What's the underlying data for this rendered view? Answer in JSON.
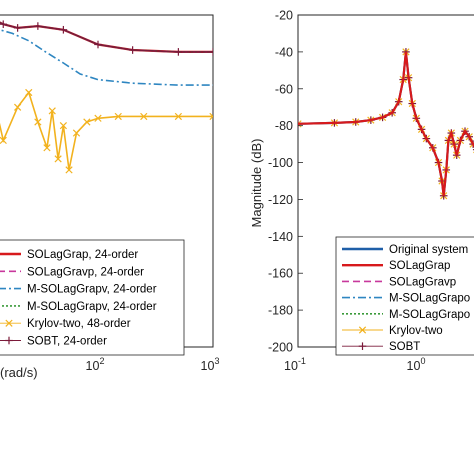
{
  "chart_data": [
    {
      "type": "line",
      "panel": "left",
      "xlabel": "(rad/s)",
      "xscale": "log",
      "xlim": [
        0.3,
        1000
      ],
      "x_ticks": [
        {
          "value": 100,
          "base": "10",
          "exp": "2"
        },
        {
          "value": 1000,
          "base": "10",
          "exp": "3"
        }
      ],
      "y_ticks": [],
      "grid": false,
      "legend_position": "bottom-left",
      "series": [
        {
          "name": "SOLagGrap, 24-order",
          "color": "#d7191c",
          "style": "solid",
          "x": [
            0.3,
            1,
            3,
            6,
            8,
            10,
            12,
            15,
            20,
            30,
            50,
            100,
            200,
            500,
            1000
          ],
          "y": [
            -38,
            -36,
            -30,
            -24,
            -28,
            -35,
            -22,
            -25,
            -27,
            -26,
            -28,
            -36,
            -39,
            -40,
            -40
          ]
        },
        {
          "name": "SOLagGravp, 24-order",
          "color": "#c8389c",
          "style": "dashed",
          "x": [
            0.3,
            1,
            3,
            6,
            8,
            10,
            12,
            15,
            20,
            30,
            50,
            100,
            200,
            500,
            1000
          ],
          "y": [
            -38,
            -36,
            -30,
            -24,
            -28,
            -35,
            -22,
            -25,
            -27,
            -26,
            -28,
            -36,
            -39,
            -40,
            -40
          ]
        },
        {
          "name": "M-SOLagGrapv, 24-order",
          "color": "#2e86c1",
          "style": "dashdot",
          "x": [
            0.3,
            1,
            3,
            6,
            10,
            14,
            18,
            25,
            35,
            50,
            70,
            100,
            200,
            500,
            1000
          ],
          "y": [
            -40,
            -38,
            -34,
            -30,
            -36,
            -28,
            -30,
            -34,
            -40,
            -46,
            -52,
            -55,
            -57,
            -58,
            -58
          ]
        },
        {
          "name": "M-SOLagGrapv, 24-order",
          "color": "#3a9a3a",
          "style": "dotted",
          "x": [
            0.3,
            1,
            3,
            6,
            8,
            10,
            12,
            15,
            20,
            30,
            50,
            100,
            200,
            500,
            1000
          ],
          "y": [
            -38,
            -36,
            -30,
            -24,
            -28,
            -35,
            -22,
            -25,
            -27,
            -26,
            -28,
            -36,
            -39,
            -40,
            -40
          ]
        },
        {
          "name": "Krylov-two, 48-order",
          "color": "#f2b21e",
          "style": "marker-x",
          "x": [
            0.3,
            1,
            3,
            5,
            7,
            9,
            12,
            15,
            20,
            25,
            30,
            36,
            40,
            45,
            50,
            56,
            65,
            80,
            100,
            150,
            250,
            500,
            1000
          ],
          "y": [
            -45,
            -48,
            -60,
            -72,
            -65,
            -50,
            -62,
            -88,
            -70,
            -62,
            -78,
            -92,
            -72,
            -98,
            -80,
            -104,
            -84,
            -78,
            -76,
            -75,
            -75,
            -75,
            -75
          ]
        },
        {
          "name": "SOBT, 24-order",
          "color": "#7b1a3a",
          "style": "marker-plus",
          "x": [
            0.3,
            1,
            3,
            6,
            8,
            10,
            12,
            15,
            20,
            30,
            50,
            100,
            200,
            500,
            1000
          ],
          "y": [
            -38,
            -36,
            -30,
            -24,
            -28,
            -35,
            -22,
            -25,
            -27,
            -26,
            -28,
            -36,
            -39,
            -40,
            -40
          ]
        }
      ]
    },
    {
      "type": "line",
      "panel": "right",
      "xlabel": "",
      "ylabel": "Magnitude (dB)",
      "xscale": "log",
      "xlim": [
        0.1,
        3
      ],
      "ylim": [
        -200,
        -20
      ],
      "x_ticks": [
        {
          "value": 0.1,
          "base": "10",
          "exp": "-1"
        },
        {
          "value": 1,
          "base": "10",
          "exp": "0"
        }
      ],
      "y_ticks": [
        -20,
        -40,
        -60,
        -80,
        -100,
        -120,
        -140,
        -160,
        -180,
        -200
      ],
      "grid": false,
      "legend_position": "bottom-right",
      "series": [
        {
          "name": "Original system",
          "color": "#1f5fa8",
          "style": "solid",
          "x": [
            0.1,
            0.2,
            0.3,
            0.4,
            0.5,
            0.6,
            0.68,
            0.74,
            0.78,
            0.82,
            0.88,
            0.95,
            1.05,
            1.15,
            1.3,
            1.45,
            1.55,
            1.6,
            1.68,
            1.75,
            1.85,
            1.95,
            2.05,
            2.2,
            2.4,
            2.6,
            2.8,
            3.0
          ],
          "y": [
            -79,
            -78.5,
            -78,
            -77,
            -75.5,
            -73,
            -67,
            -55,
            -40,
            -54,
            -68,
            -76,
            -82,
            -87,
            -92,
            -100,
            -110,
            -118,
            -104,
            -88,
            -84,
            -90,
            -96,
            -88,
            -83,
            -86,
            -90,
            -93
          ]
        },
        {
          "name": "SOLagGrap",
          "color": "#d7191c",
          "style": "solid",
          "x": [
            0.1,
            0.2,
            0.3,
            0.4,
            0.5,
            0.6,
            0.68,
            0.74,
            0.78,
            0.82,
            0.88,
            0.95,
            1.05,
            1.15,
            1.3,
            1.45,
            1.55,
            1.6,
            1.68,
            1.75,
            1.85,
            1.95,
            2.05,
            2.2,
            2.4,
            2.6,
            2.8,
            3.0
          ],
          "y": [
            -79,
            -78.5,
            -78,
            -77,
            -75.5,
            -73,
            -67,
            -55,
            -40,
            -54,
            -68,
            -76,
            -82,
            -87,
            -92,
            -100,
            -110,
            -118,
            -104,
            -88,
            -84,
            -90,
            -96,
            -88,
            -83,
            -86,
            -90,
            -93
          ]
        },
        {
          "name": "SOLagGravp",
          "color": "#c8389c",
          "style": "dashed",
          "x": [
            0.1,
            0.2,
            0.3,
            0.4,
            0.5,
            0.6,
            0.68,
            0.74,
            0.78,
            0.82,
            0.88,
            0.95,
            1.05,
            1.15,
            1.3,
            1.45,
            1.55,
            1.6,
            1.68,
            1.75,
            1.85,
            1.95,
            2.05,
            2.2,
            2.4,
            2.6,
            2.8,
            3.0
          ],
          "y": [
            -79,
            -78.5,
            -78,
            -77,
            -75.5,
            -73,
            -67,
            -55,
            -40,
            -54,
            -68,
            -76,
            -82,
            -87,
            -92,
            -100,
            -110,
            -118,
            -104,
            -88,
            -84,
            -90,
            -96,
            -88,
            -83,
            -86,
            -90,
            -93
          ]
        },
        {
          "name": "M-SOLagGrapo",
          "color": "#2e86c1",
          "style": "dashdot",
          "x": [
            0.1,
            0.2,
            0.3,
            0.4,
            0.5,
            0.6,
            0.68,
            0.74,
            0.78,
            0.82,
            0.88,
            0.95,
            1.05,
            1.15,
            1.3,
            1.45,
            1.55,
            1.6,
            1.68,
            1.75,
            1.85,
            1.95,
            2.05,
            2.2,
            2.4,
            2.6,
            2.8,
            3.0
          ],
          "y": [
            -79,
            -78.5,
            -78,
            -77,
            -75.5,
            -73,
            -67,
            -55,
            -40,
            -54,
            -68,
            -76,
            -82,
            -87,
            -92,
            -100,
            -110,
            -118,
            -104,
            -88,
            -84,
            -90,
            -96,
            -88,
            -83,
            -86,
            -90,
            -93
          ]
        },
        {
          "name": "M-SOLagGrapo",
          "color": "#3a9a3a",
          "style": "dotted",
          "x": [
            0.1,
            0.2,
            0.3,
            0.4,
            0.5,
            0.6,
            0.68,
            0.74,
            0.78,
            0.82,
            0.88,
            0.95,
            1.05,
            1.15,
            1.3,
            1.45,
            1.55,
            1.6,
            1.68,
            1.75,
            1.85,
            1.95,
            2.05,
            2.2,
            2.4,
            2.6,
            2.8,
            3.0
          ],
          "y": [
            -79,
            -78.5,
            -78,
            -77,
            -75.5,
            -73,
            -67,
            -55,
            -40,
            -54,
            -68,
            -76,
            -82,
            -87,
            -92,
            -100,
            -110,
            -118,
            -104,
            -88,
            -84,
            -90,
            -96,
            -88,
            -83,
            -86,
            -90,
            -93
          ]
        },
        {
          "name": "Krylov-two",
          "color": "#f2b21e",
          "style": "marker-x",
          "x": [
            0.1,
            0.2,
            0.3,
            0.4,
            0.5,
            0.6,
            0.68,
            0.74,
            0.78,
            0.82,
            0.88,
            0.95,
            1.05,
            1.15,
            1.3,
            1.45,
            1.55,
            1.6,
            1.68,
            1.75,
            1.85,
            1.95,
            2.05,
            2.2,
            2.4,
            2.6,
            2.8,
            3.0
          ],
          "y": [
            -79,
            -78.5,
            -78,
            -77,
            -75.5,
            -73,
            -67,
            -55,
            -40,
            -54,
            -68,
            -76,
            -82,
            -87,
            -92,
            -100,
            -110,
            -118,
            -104,
            -88,
            -84,
            -90,
            -96,
            -88,
            -83,
            -86,
            -90,
            -93
          ]
        },
        {
          "name": "SOBT",
          "color": "#7b1a3a",
          "style": "marker-plus",
          "x": [
            0.1,
            0.2,
            0.3,
            0.4,
            0.5,
            0.6,
            0.68,
            0.74,
            0.78,
            0.82,
            0.88,
            0.95,
            1.05,
            1.15,
            1.3,
            1.45,
            1.55,
            1.6,
            1.68,
            1.75,
            1.85,
            1.95,
            2.05,
            2.2,
            2.4,
            2.6,
            2.8,
            3.0
          ],
          "y": [
            -79,
            -78.5,
            -78,
            -77,
            -75.5,
            -73,
            -67,
            -55,
            -40,
            -54,
            -68,
            -76,
            -82,
            -87,
            -92,
            -100,
            -110,
            -118,
            -104,
            -88,
            -84,
            -90,
            -96,
            -88,
            -83,
            -86,
            -90,
            -93
          ]
        }
      ]
    }
  ]
}
